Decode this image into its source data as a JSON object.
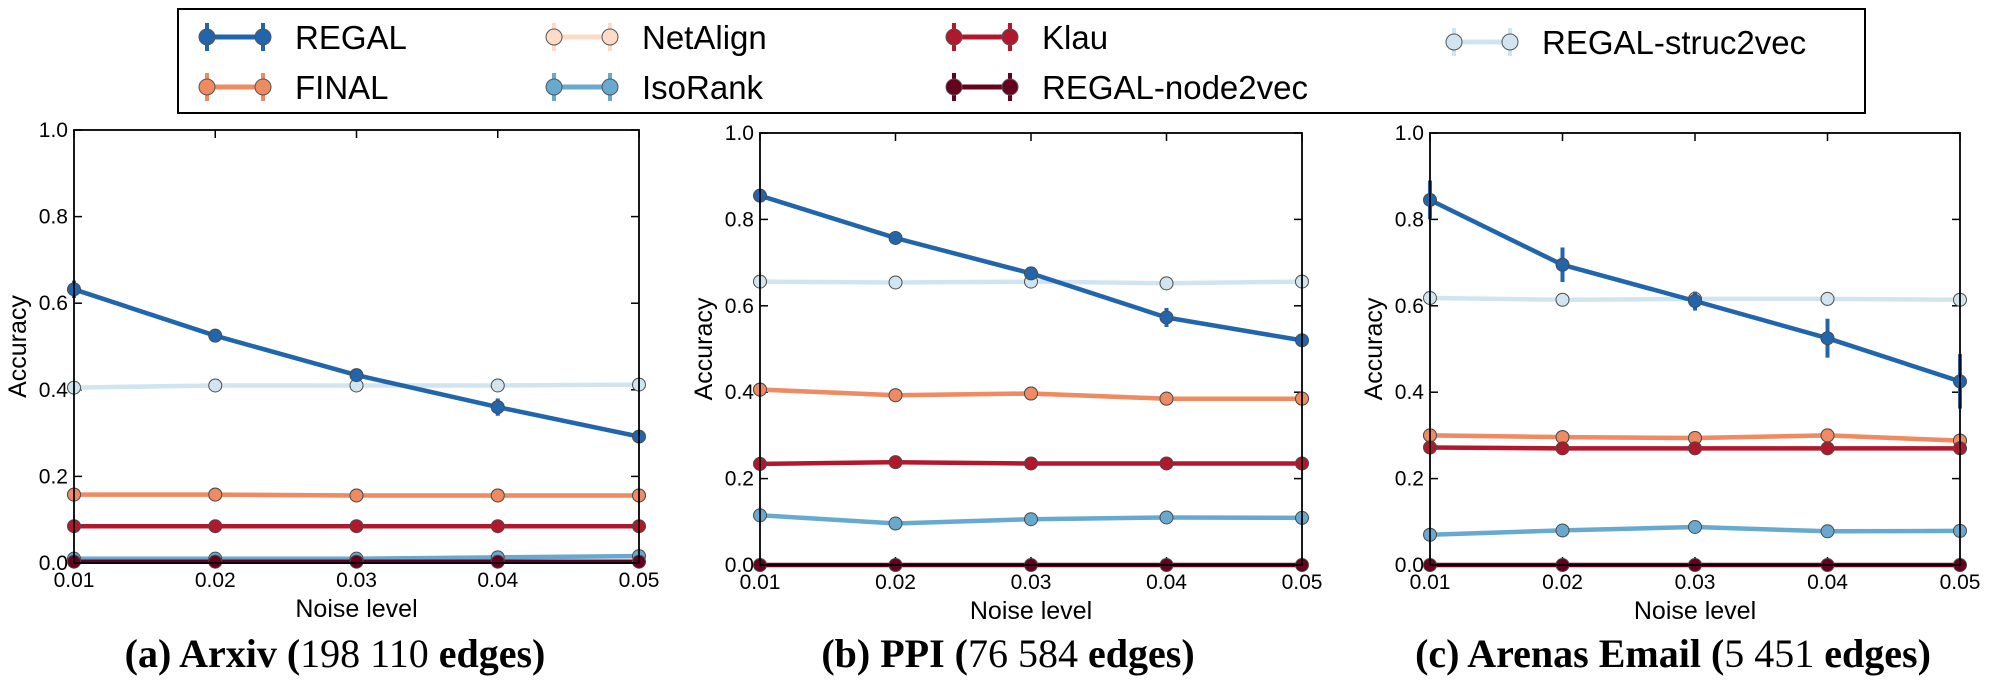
{
  "legend": [
    {
      "name": "REGAL",
      "color": "#2166ac"
    },
    {
      "name": "FINAL",
      "color": "#ef8a62"
    },
    {
      "name": "NetAlign",
      "color": "#fddbc7"
    },
    {
      "name": "IsoRank",
      "color": "#67a9cf"
    },
    {
      "name": "Klau",
      "color": "#b2182b"
    },
    {
      "name": "REGAL-node2vec",
      "color": "#67001f"
    },
    {
      "name": "REGAL-struc2vec",
      "color": "#d1e5f0"
    }
  ],
  "captions": [
    {
      "prefix": "(a) Arxiv (",
      "num": "198 110",
      "suffix": " edges)"
    },
    {
      "prefix": "(b) PPI (",
      "num": "76 584",
      "suffix": " edges)"
    },
    {
      "prefix": "(c) Arenas Email (",
      "num": "5 451",
      "suffix": " edges)"
    }
  ],
  "chart_data": [
    {
      "type": "line",
      "title": "(a) Arxiv (198 110 edges)",
      "xlabel": "Noise level",
      "ylabel": "Accuracy",
      "x": [
        0.01,
        0.02,
        0.03,
        0.04,
        0.05
      ],
      "x_tick_labels": [
        "0.01",
        "0.02",
        "0.03",
        "0.04",
        "0.05"
      ],
      "y_tick_labels": [
        "0.0",
        "0.2",
        "0.4",
        "0.6",
        "0.8",
        "1.0"
      ],
      "xlim": [
        0.01,
        0.05
      ],
      "ylim": [
        0,
        1
      ],
      "series": [
        {
          "name": "REGAL-struc2vec",
          "values": [
            0.405,
            0.41,
            0.41,
            0.41,
            0.412
          ]
        },
        {
          "name": "NetAlign",
          "values": [
            0.158,
            0.158,
            0.156,
            0.156,
            0.156
          ]
        },
        {
          "name": "FINAL",
          "values": [
            0.158,
            0.158,
            0.156,
            0.156,
            0.156
          ]
        },
        {
          "name": "Klau",
          "values": [
            0.085,
            0.085,
            0.085,
            0.085,
            0.085
          ]
        },
        {
          "name": "IsoRank",
          "values": [
            0.01,
            0.01,
            0.01,
            0.013,
            0.016
          ]
        },
        {
          "name": "REGAL-node2vec",
          "values": [
            0.003,
            0.003,
            0.003,
            0.003,
            0.003
          ]
        },
        {
          "name": "REGAL",
          "values": [
            0.632,
            0.525,
            0.434,
            0.36,
            0.292
          ],
          "errors": [
            0.02,
            0.01,
            0.01,
            0.02,
            0.01
          ]
        }
      ]
    },
    {
      "type": "line",
      "title": "(b) PPI (76 584 edges)",
      "xlabel": "Noise level",
      "ylabel": "Accuracy",
      "x": [
        0.01,
        0.02,
        0.03,
        0.04,
        0.05
      ],
      "x_tick_labels": [
        "0.01",
        "0.02",
        "0.03",
        "0.04",
        "0.05"
      ],
      "y_tick_labels": [
        "0.0",
        "0.2",
        "0.4",
        "0.6",
        "0.8",
        "1.0"
      ],
      "xlim": [
        0.01,
        0.05
      ],
      "ylim": [
        0,
        1
      ],
      "series": [
        {
          "name": "REGAL-struc2vec",
          "values": [
            0.656,
            0.654,
            0.656,
            0.652,
            0.656
          ]
        },
        {
          "name": "NetAlign",
          "values": [
            0.406,
            0.393,
            0.397,
            0.385,
            0.385
          ]
        },
        {
          "name": "FINAL",
          "values": [
            0.406,
            0.393,
            0.397,
            0.385,
            0.385
          ]
        },
        {
          "name": "Klau",
          "values": [
            0.234,
            0.238,
            0.235,
            0.235,
            0.235
          ]
        },
        {
          "name": "IsoRank",
          "values": [
            0.115,
            0.096,
            0.106,
            0.11,
            0.109
          ]
        },
        {
          "name": "REGAL-node2vec",
          "values": [
            0.0,
            0.0,
            0.0,
            0.0,
            0.0
          ]
        },
        {
          "name": "REGAL",
          "values": [
            0.855,
            0.757,
            0.675,
            0.573,
            0.52
          ],
          "errors": [
            0.01,
            0.015,
            0.01,
            0.022,
            0.008
          ]
        }
      ]
    },
    {
      "type": "line",
      "title": "(c) Arenas Email (5 451 edges)",
      "xlabel": "Noise level",
      "ylabel": "Accuracy",
      "x": [
        0.01,
        0.02,
        0.03,
        0.04,
        0.05
      ],
      "x_tick_labels": [
        "0.01",
        "0.02",
        "0.03",
        "0.04",
        "0.05"
      ],
      "y_tick_labels": [
        "0.0",
        "0.2",
        "0.4",
        "0.6",
        "0.8",
        "1.0"
      ],
      "xlim": [
        0.01,
        0.05
      ],
      "ylim": [
        0,
        1
      ],
      "series": [
        {
          "name": "REGAL-struc2vec",
          "values": [
            0.618,
            0.614,
            0.616,
            0.616,
            0.614
          ]
        },
        {
          "name": "NetAlign",
          "values": [
            0.3,
            0.296,
            0.294,
            0.3,
            0.288
          ]
        },
        {
          "name": "FINAL",
          "values": [
            0.3,
            0.296,
            0.294,
            0.3,
            0.288
          ]
        },
        {
          "name": "Klau",
          "values": [
            0.272,
            0.27,
            0.27,
            0.27,
            0.27
          ]
        },
        {
          "name": "IsoRank",
          "values": [
            0.07,
            0.08,
            0.088,
            0.078,
            0.079
          ]
        },
        {
          "name": "REGAL-node2vec",
          "values": [
            0.0,
            0.0,
            0.0,
            0.0,
            0.0
          ]
        },
        {
          "name": "REGAL",
          "values": [
            0.845,
            0.695,
            0.611,
            0.525,
            0.425
          ],
          "errors": [
            0.045,
            0.04,
            0.022,
            0.045,
            0.063
          ]
        }
      ]
    }
  ]
}
